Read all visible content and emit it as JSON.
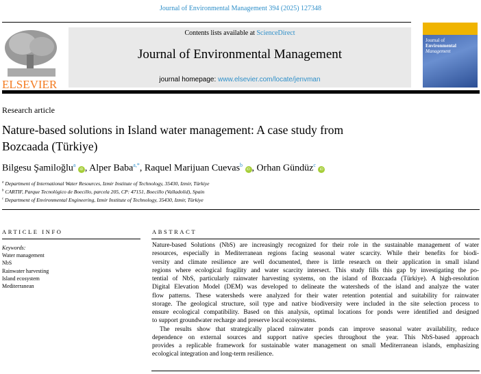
{
  "running_head": "Journal of Environmental Management 394 (2025) 127348",
  "banner": {
    "contents_prefix": "Contents lists available at ",
    "contents_link": "ScienceDirect",
    "journal": "Journal of Environmental Management",
    "homepage_prefix": "journal homepage: ",
    "homepage_link": "www.elsevier.com/locate/jenvman"
  },
  "publisher": "ELSEVIER",
  "cover": {
    "line1": "Journal of",
    "line2": "Environmental",
    "line3": "Management"
  },
  "article_type": "Research article",
  "title_lines": [
    "Nature-based solutions in Island water management: A case study from",
    "Bozcaada (Türkiye)"
  ],
  "authors": [
    {
      "name": "Bilgesu Şamiloğlu",
      "sup": "a"
    },
    {
      "name": "Alper Baba",
      "sup": "a,*"
    },
    {
      "name": "Raquel Marijuan Cuevas",
      "sup": "b"
    },
    {
      "name": "Orhan Gündüz",
      "sup": "c"
    }
  ],
  "orcid_label": "iD",
  "affiliations": [
    {
      "sup": "a",
      "text": "Department of International Water Resources, Izmir Institute of Technology, 35430, Izmir, Türkiye"
    },
    {
      "sup": "b",
      "text": "CARTIF, Parque Tecnológico de Boecillo, parcela 205, CP: 47151, Boecillo (Valladolid), Spain"
    },
    {
      "sup": "c",
      "text": "Department of Environmental Engineering, Izmir Institute of Technology, 35430, Izmir, Türkiye"
    }
  ],
  "article_info": {
    "heading": "ARTICLE INFO",
    "keywords_label": "Keywords:",
    "keywords": [
      "Water management",
      "NbS",
      "Rainwater harvesting",
      "Island ecosystem",
      "Mediterranean"
    ]
  },
  "abstract": {
    "heading": "ABSTRACT",
    "lines": [
      "Nature-based Solutions (NbS) are increasingly recognized for their role in the sustainable management of water",
      "resources, especially in Mediterranean regions facing seasonal water scarcity. While their benefits for biodi-",
      "versity and climate resilience are well documented, there is little research on their application in small island",
      "regions where ecological fragility and water scarcity intersect. This study fills this gap by investigating the po-",
      "tential of NbS, particularly rainwater harvesting systems, on the island of Bozcaada (Türkiye). A high-resolution",
      "Digital Elevation Model (DEM) was developed to delineate the watersheds of the island and analyze the water",
      "flow patterns. These watersheds were analyzed for their water retention potential and suitability for rainwater",
      "storage. The geological structure, soil type and native biodiversity were included in the site selection process to",
      "ensure ecological compatibility. Based on this analysis, optimal locations for ponds were identified and designed",
      "to support groundwater recharge and preserve local ecosystems.",
      "The results show that strategically placed rainwater ponds can improve seasonal water availability, reduce",
      "dependence on external sources and support native species throughout the year. This NbS-based approach",
      "provides a replicable framework for sustainable water management on small Mediterranean islands, emphasizing",
      "ecological integration and long-term resilience."
    ]
  },
  "colors": {
    "link": "#2e8fc9",
    "publisher": "#f47b20",
    "orcid": "#a6ce39",
    "banner_bg": "#e9e9e9"
  }
}
